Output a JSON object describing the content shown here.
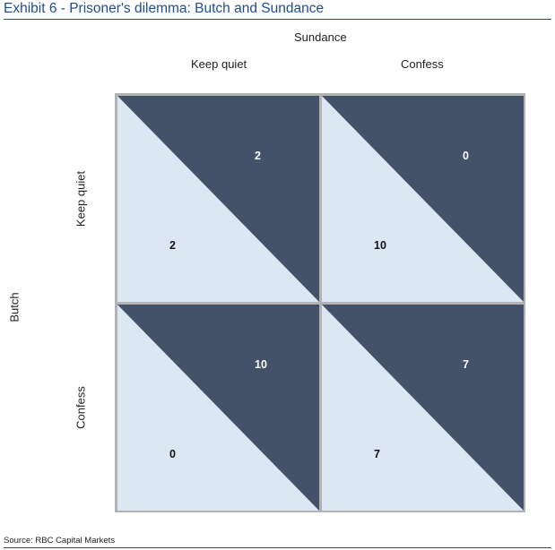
{
  "title": "Exhibit 6 - Prisoner's dilemma: Butch and Sundance",
  "column_player": "Sundance",
  "row_player": "Butch",
  "strategies": {
    "column": [
      "Keep quiet",
      "Confess"
    ],
    "row": [
      "Keep quiet",
      "Confess"
    ]
  },
  "colors": {
    "title": "#1f4e8c",
    "dark_triangle": "#435169",
    "light_triangle": "#dce7f4",
    "border": "#b3b3b3"
  },
  "cells": [
    [
      {
        "sundance": "2",
        "butch": "2"
      },
      {
        "sundance": "0",
        "butch": "10"
      }
    ],
    [
      {
        "sundance": "10",
        "butch": "0"
      },
      {
        "sundance": "7",
        "butch": "7"
      }
    ]
  ],
  "source": "Source: RBC Capital Markets"
}
